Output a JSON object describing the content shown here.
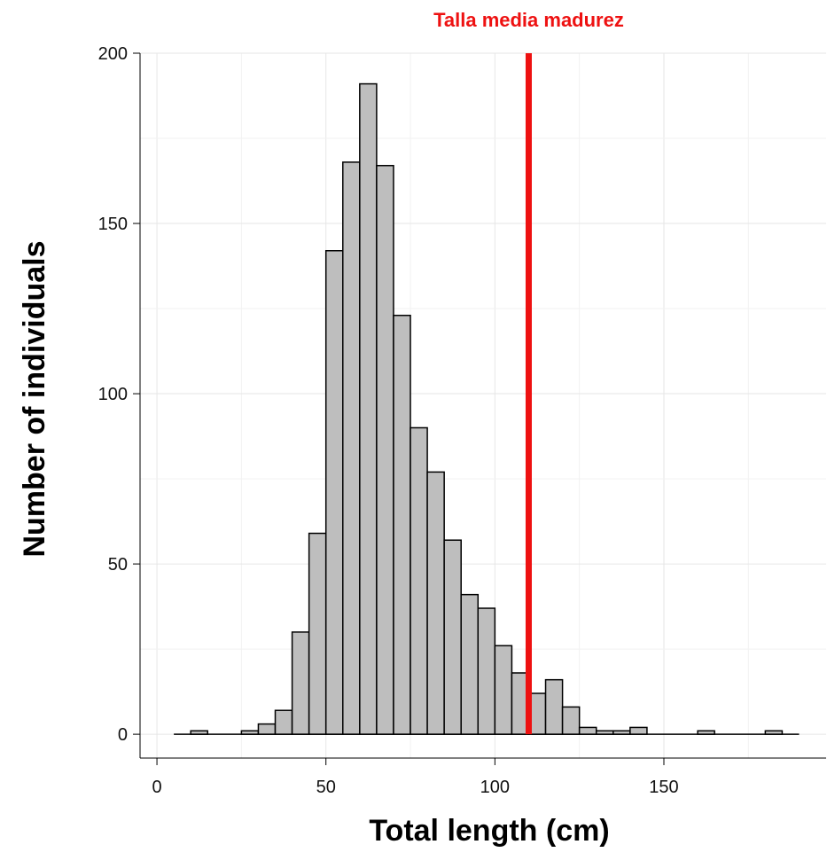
{
  "chart_data": {
    "type": "bar",
    "subtype": "histogram",
    "xlabel": "Total length (cm)",
    "ylabel": "Number of individuals",
    "xlim": [
      -5,
      198
    ],
    "ylim": [
      -7,
      200
    ],
    "xticks": [
      0,
      50,
      100,
      150
    ],
    "yticks": [
      0,
      50,
      100,
      150,
      200
    ],
    "grid": true,
    "bin_width": 5,
    "bins": [
      {
        "x0": 5,
        "x1": 10,
        "count": 0
      },
      {
        "x0": 10,
        "x1": 15,
        "count": 1
      },
      {
        "x0": 15,
        "x1": 20,
        "count": 0
      },
      {
        "x0": 20,
        "x1": 25,
        "count": 0
      },
      {
        "x0": 25,
        "x1": 30,
        "count": 1
      },
      {
        "x0": 30,
        "x1": 35,
        "count": 3
      },
      {
        "x0": 35,
        "x1": 40,
        "count": 7
      },
      {
        "x0": 40,
        "x1": 45,
        "count": 30
      },
      {
        "x0": 45,
        "x1": 50,
        "count": 59
      },
      {
        "x0": 50,
        "x1": 55,
        "count": 142
      },
      {
        "x0": 55,
        "x1": 60,
        "count": 168
      },
      {
        "x0": 60,
        "x1": 65,
        "count": 191
      },
      {
        "x0": 65,
        "x1": 70,
        "count": 167
      },
      {
        "x0": 70,
        "x1": 75,
        "count": 123
      },
      {
        "x0": 75,
        "x1": 80,
        "count": 90
      },
      {
        "x0": 80,
        "x1": 85,
        "count": 77
      },
      {
        "x0": 85,
        "x1": 90,
        "count": 57
      },
      {
        "x0": 90,
        "x1": 95,
        "count": 41
      },
      {
        "x0": 95,
        "x1": 100,
        "count": 37
      },
      {
        "x0": 100,
        "x1": 105,
        "count": 26
      },
      {
        "x0": 105,
        "x1": 110,
        "count": 18
      },
      {
        "x0": 110,
        "x1": 115,
        "count": 12
      },
      {
        "x0": 115,
        "x1": 120,
        "count": 16
      },
      {
        "x0": 120,
        "x1": 125,
        "count": 8
      },
      {
        "x0": 125,
        "x1": 130,
        "count": 2
      },
      {
        "x0": 130,
        "x1": 135,
        "count": 1
      },
      {
        "x0": 135,
        "x1": 140,
        "count": 1
      },
      {
        "x0": 140,
        "x1": 145,
        "count": 2
      },
      {
        "x0": 145,
        "x1": 150,
        "count": 0
      },
      {
        "x0": 150,
        "x1": 155,
        "count": 0
      },
      {
        "x0": 155,
        "x1": 160,
        "count": 0
      },
      {
        "x0": 160,
        "x1": 165,
        "count": 1
      },
      {
        "x0": 165,
        "x1": 170,
        "count": 0
      },
      {
        "x0": 170,
        "x1": 175,
        "count": 0
      },
      {
        "x0": 175,
        "x1": 180,
        "count": 0
      },
      {
        "x0": 180,
        "x1": 185,
        "count": 1
      },
      {
        "x0": 185,
        "x1": 190,
        "count": 0
      }
    ],
    "bar_color": "#bebebe",
    "bar_edge_color": "#000000",
    "reference_line": {
      "x": 110,
      "label": "Talla media madurez",
      "color": "#ee1111"
    }
  }
}
